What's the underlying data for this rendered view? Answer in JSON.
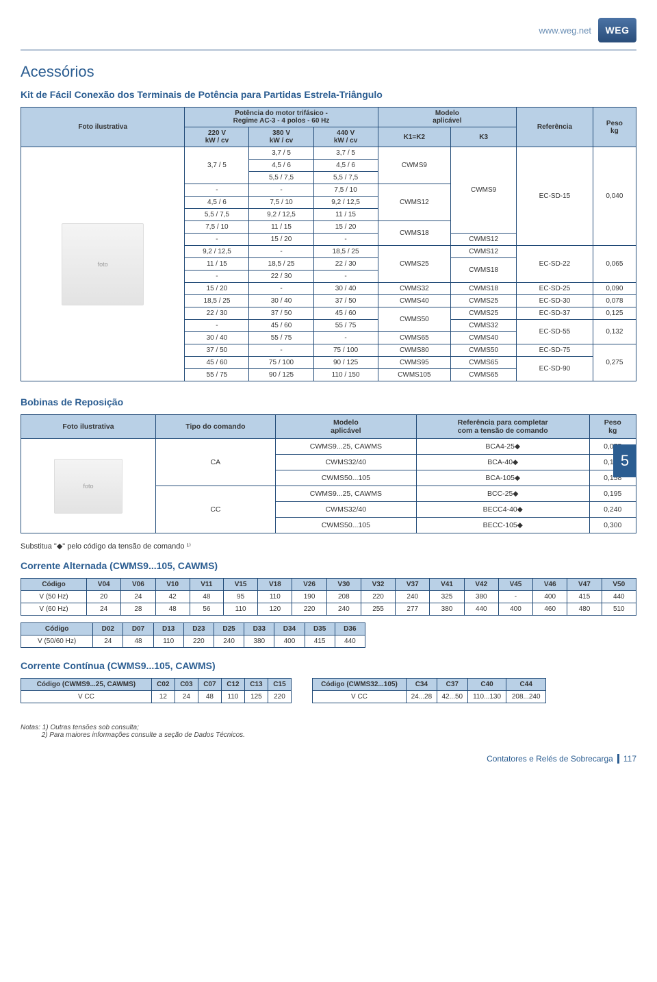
{
  "header": {
    "url": "www.weg.net",
    "logo": "WEG"
  },
  "section_title": "Acessórios",
  "kit_title": "Kit de Fácil Conexão dos Terminais de Potência para Partidas Estrela-Triângulo",
  "kit_table": {
    "col_foto": "Foto ilustrativa",
    "col_pot_group": "Potência do motor trifásico -\nRegime AC-3 - 4 polos - 60 Hz",
    "col_pot_sub": [
      "220 V\nkW / cv",
      "380 V\nkW / cv",
      "440 V\nkW / cv"
    ],
    "col_mod_group": "Modelo\naplicável",
    "col_mod_sub": [
      "K1=K2",
      "K3"
    ],
    "col_ref": "Referência",
    "col_peso": "Peso\nkg",
    "rows": [
      {
        "c": [
          "3,7 / 5",
          "3,7 / 5",
          "3,7 / 5"
        ],
        "k12": "CWMS9",
        "k3": "CWMS9",
        "ref": "EC-SD-15",
        "peso": "0,040"
      },
      {
        "c": [
          "",
          "4,5 / 6",
          "4,5 / 6"
        ]
      },
      {
        "c": [
          "",
          "5,5 / 7,5",
          "5,5 / 7,5"
        ]
      },
      {
        "c": [
          "-",
          "-",
          "7,5 / 10"
        ]
      },
      {
        "c": [
          "4,5 / 6",
          "7,5 / 10",
          "9,2 / 12,5"
        ],
        "k12": "CWMS12"
      },
      {
        "c": [
          "5,5 / 7,5",
          "9,2 / 12,5",
          "11 / 15"
        ]
      },
      {
        "c": [
          "7,5 / 10",
          "11 / 15",
          "15 / 20"
        ],
        "k12": "CWMS18"
      },
      {
        "c": [
          "-",
          "15 / 20",
          "-"
        ],
        "k3": "CWMS12"
      },
      {
        "c": [
          "9,2 / 12,5",
          "-",
          "18,5 / 25"
        ],
        "k12": "CWMS25",
        "k3": "CWMS12",
        "ref": "EC-SD-22",
        "peso": "0,065"
      },
      {
        "c": [
          "11 / 15",
          "18,5 / 25",
          "22 / 30"
        ],
        "k3": "CWMS18"
      },
      {
        "c": [
          "-",
          "22 / 30",
          "-"
        ]
      },
      {
        "c": [
          "15 / 20",
          "-",
          "30 / 40"
        ],
        "k12": "CWMS32",
        "k3": "CWMS18",
        "ref": "EC-SD-25",
        "peso": "0,090"
      },
      {
        "c": [
          "18,5 / 25",
          "30 / 40",
          "37 / 50"
        ],
        "k12": "CWMS40",
        "k3": "CWMS25",
        "ref": "EC-SD-30",
        "peso": "0,078"
      },
      {
        "c": [
          "22 / 30",
          "37 / 50",
          "45 / 60"
        ],
        "k12": "CWMS50",
        "k3": "CWMS25",
        "ref": "EC-SD-37",
        "peso": "0,125"
      },
      {
        "c": [
          "-",
          "45 / 60",
          "55 / 75"
        ],
        "k3": "CWMS32",
        "ref": "EC-SD-55",
        "peso": "0,132"
      },
      {
        "c": [
          "30 / 40",
          "55 / 75",
          "-"
        ],
        "k12": "CWMS65",
        "k3": "CWMS40"
      },
      {
        "c": [
          "37 / 50",
          "-",
          "75 / 100"
        ],
        "k12": "CWMS80",
        "k3": "CWMS50",
        "ref": "EC-SD-75",
        "peso": "0,275"
      },
      {
        "c": [
          "45 / 60",
          "75 / 100",
          "90 / 125"
        ],
        "k12": "CWMS95",
        "k3": "CWMS65",
        "ref": "EC-SD-90"
      },
      {
        "c": [
          "55 / 75",
          "90 / 125",
          "110 / 150"
        ],
        "k12": "CWMS105",
        "k3": "CWMS65"
      }
    ]
  },
  "bobinas_title": "Bobinas de Reposição",
  "bobinas_table": {
    "cols": [
      "Foto ilustrativa",
      "Tipo do comando",
      "Modelo\naplicável",
      "Referência para completar\ncom a tensão de comando",
      "Peso\nkg"
    ],
    "rows": [
      {
        "tipo": "CA",
        "mod": "CWMS9...25, CAWMS",
        "ref": "BCA4-25◆",
        "peso": "0,075"
      },
      {
        "mod": "CWMS32/40",
        "ref": "BCA-40◆",
        "peso": "0,123"
      },
      {
        "mod": "CWMS50...105",
        "ref": "BCA-105◆",
        "peso": "0,158"
      },
      {
        "tipo": "CC",
        "mod": "CWMS9...25, CAWMS",
        "ref": "BCC-25◆",
        "peso": "0,195"
      },
      {
        "mod": "CWMS32/40",
        "ref": "BECC4-40◆",
        "peso": "0,240"
      },
      {
        "mod": "CWMS50...105",
        "ref": "BECC-105◆",
        "peso": "0,300"
      }
    ]
  },
  "side_tab": "5",
  "subst_note": "Substitua \"◆\" pelo código da tensão de comando ¹⁾",
  "ac_title": "Corrente Alternada (CWMS9...105, CAWMS)",
  "ac_table1": {
    "headers": [
      "Código",
      "V04",
      "V06",
      "V10",
      "V11",
      "V15",
      "V18",
      "V26",
      "V30",
      "V32",
      "V37",
      "V41",
      "V42",
      "V45",
      "V46",
      "V47",
      "V50"
    ],
    "rows": [
      [
        "V (50 Hz)",
        "20",
        "24",
        "42",
        "48",
        "95",
        "110",
        "190",
        "208",
        "220",
        "240",
        "325",
        "380",
        "-",
        "400",
        "415",
        "440"
      ],
      [
        "V (60 Hz)",
        "24",
        "28",
        "48",
        "56",
        "110",
        "120",
        "220",
        "240",
        "255",
        "277",
        "380",
        "440",
        "400",
        "460",
        "480",
        "510"
      ]
    ]
  },
  "ac_table2": {
    "headers": [
      "Código",
      "D02",
      "D07",
      "D13",
      "D23",
      "D25",
      "D33",
      "D34",
      "D35",
      "D36"
    ],
    "rows": [
      [
        "V (50/60 Hz)",
        "24",
        "48",
        "110",
        "220",
        "240",
        "380",
        "400",
        "415",
        "440"
      ]
    ]
  },
  "cc_title": "Corrente Contínua (CWMS9...105, CAWMS)",
  "cc_table1": {
    "headers": [
      "Código (CWMS9...25, CAWMS)",
      "C02",
      "C03",
      "C07",
      "C12",
      "C13",
      "C15"
    ],
    "rows": [
      [
        "V CC",
        "12",
        "24",
        "48",
        "110",
        "125",
        "220"
      ]
    ]
  },
  "cc_table2": {
    "headers": [
      "Código (CWMS32...105)",
      "C34",
      "C37",
      "C40",
      "C44"
    ],
    "rows": [
      [
        "V CC",
        "24...28",
        "42...50",
        "110...130",
        "208...240"
      ]
    ]
  },
  "notes": {
    "label": "Notas:",
    "n1": "1) Outras tensões sob consulta;",
    "n2": "2) Para maiores informações consulte a seção de Dados Técnicos."
  },
  "footer": {
    "text": "Contatores e Relés de Sobrecarga",
    "page": "117"
  },
  "colors": {
    "header_bg": "#b9d0e6",
    "border": "#214a77",
    "accent": "#2b5d91"
  }
}
